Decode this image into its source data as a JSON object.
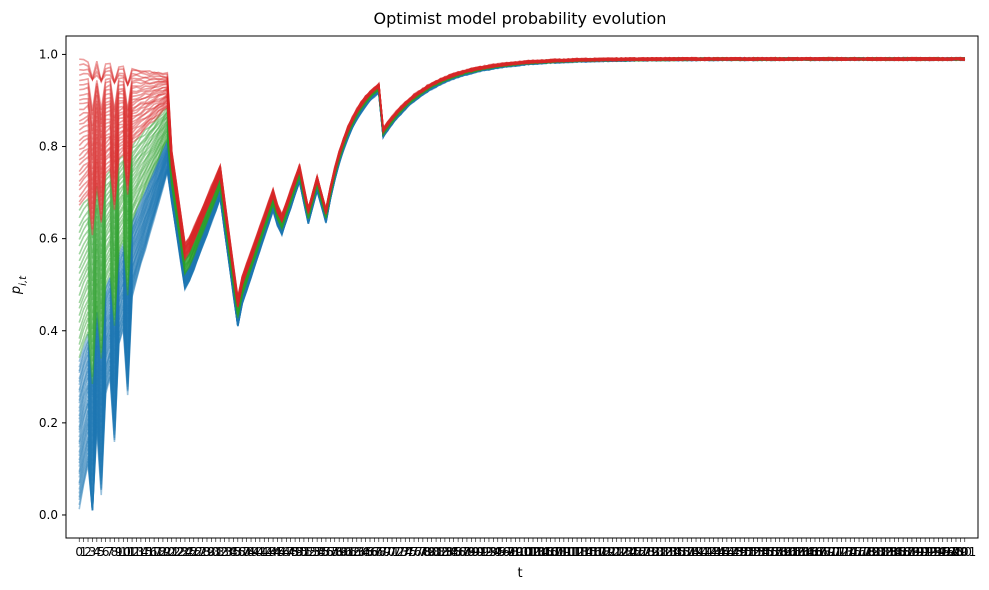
{
  "chart_data": {
    "type": "line",
    "title": "Optimist model probability evolution",
    "xlabel": "t",
    "ylabel": "p_{i,t}",
    "xlim": [
      0,
      201
    ],
    "ylim": [
      0.0,
      1.0
    ],
    "x_ticks_step": 1,
    "y_ticks": [
      "0.0",
      "0.2",
      "0.4",
      "0.6",
      "0.8",
      "1.0"
    ],
    "grid": false,
    "legend": "none",
    "groups": [
      {
        "color": "#1f77b4",
        "count": 40,
        "p0_range": [
          0.015,
          0.33
        ],
        "final_value": 0.99
      },
      {
        "color": "#2ca02c",
        "count": 22,
        "p0_range": [
          0.34,
          0.66
        ],
        "final_value": 0.99
      },
      {
        "color": "#d62728",
        "count": 30,
        "p0_range": [
          0.67,
          0.99
        ],
        "final_value": 0.99
      }
    ],
    "shared_signal": {
      "events": [
        {
          "t": 1,
          "shift": -0.02
        },
        {
          "t": 3,
          "shift": -0.12
        },
        {
          "t": 5,
          "shift": -0.1
        },
        {
          "t": 8,
          "shift": -0.06
        },
        {
          "t": 11,
          "shift": -0.08
        },
        {
          "t": 19,
          "shift": -0.1
        },
        {
          "t": 21,
          "shift": -0.08
        },
        {
          "t": 22,
          "shift": -0.09
        },
        {
          "t": 31,
          "shift": -0.08
        },
        {
          "t": 33,
          "shift": -0.1
        },
        {
          "t": 45,
          "shift": -0.07
        },
        {
          "t": 49,
          "shift": -0.09
        },
        {
          "t": 55,
          "shift": -0.07
        },
        {
          "t": 57,
          "shift": -0.08
        },
        {
          "t": 69,
          "shift": -0.1
        }
      ],
      "segments": [
        {
          "t0": 0,
          "t1": 20,
          "peak": 0.8
        },
        {
          "t0": 24,
          "t1": 32,
          "valley": 0.48,
          "peak": 0.72
        },
        {
          "t0": 36,
          "t1": 44,
          "valley": 0.43,
          "peak": 0.69
        },
        {
          "t0": 52,
          "t1": 68,
          "valley": 0.65,
          "peak": 0.92
        },
        {
          "t0": 69,
          "t1": 201,
          "valley": 0.83,
          "peak": 0.99
        }
      ]
    }
  }
}
